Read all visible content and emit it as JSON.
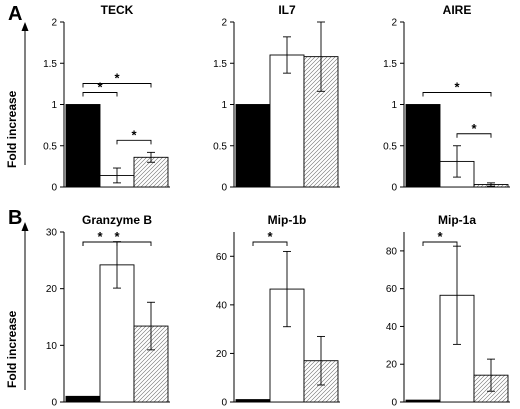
{
  "figure": {
    "panel_labels": [
      "A",
      "B"
    ],
    "ylabel": "Fold increase"
  },
  "chart_data": [
    {
      "type": "bar",
      "title": "TECK",
      "ylim": [
        0,
        2
      ],
      "yticks": [
        "0",
        "0.5",
        "1",
        "1.5",
        "2"
      ],
      "values": [
        1.0,
        0.14,
        0.36
      ],
      "errors": [
        0,
        0.09,
        0.06
      ],
      "significance": [
        {
          "from": 0,
          "to": 1,
          "label": "*"
        },
        {
          "from": 0,
          "to": 2,
          "label": "*"
        },
        {
          "from": 1,
          "to": 2,
          "label": "*"
        }
      ]
    },
    {
      "type": "bar",
      "title": "IL7",
      "ylim": [
        0,
        2
      ],
      "yticks": [
        "0",
        "0.5",
        "1",
        "1.5",
        "2"
      ],
      "values": [
        1.0,
        1.6,
        1.58
      ],
      "errors": [
        0,
        0.22,
        0.42
      ],
      "significance": []
    },
    {
      "type": "bar",
      "title": "AIRE",
      "ylim": [
        0,
        2
      ],
      "yticks": [
        "0",
        "0.5",
        "1",
        "1.5",
        "2"
      ],
      "values": [
        1.0,
        0.31,
        0.03
      ],
      "errors": [
        0,
        0.19,
        0.02
      ],
      "significance": [
        {
          "from": 0,
          "to": 2,
          "label": "*"
        },
        {
          "from": 1,
          "to": 2,
          "label": "*"
        }
      ]
    },
    {
      "type": "bar",
      "title": "Granzyme B",
      "ylim": [
        0,
        30
      ],
      "yticks": [
        "0",
        "10",
        "20",
        "30"
      ],
      "values": [
        1.0,
        24.2,
        13.4
      ],
      "errors": [
        0,
        4.1,
        4.2
      ],
      "significance": [
        {
          "from": 0,
          "to": 1,
          "label": "*"
        },
        {
          "from": 0,
          "to": 2,
          "label": "*"
        }
      ]
    },
    {
      "type": "bar",
      "title": "Mip-1b",
      "ylim": [
        0,
        70
      ],
      "yticks": [
        "0",
        "20",
        "40",
        "60"
      ],
      "values": [
        1.0,
        46.5,
        17.0
      ],
      "errors": [
        0,
        15.5,
        10.0
      ],
      "significance": [
        {
          "from": 0,
          "to": 1,
          "label": "*"
        }
      ]
    },
    {
      "type": "bar",
      "title": "Mip-1a",
      "ylim": [
        0,
        90
      ],
      "yticks": [
        "0",
        "20",
        "40",
        "60",
        "80"
      ],
      "values": [
        1.0,
        56.5,
        14.2
      ],
      "errors": [
        0,
        26.0,
        8.5
      ],
      "significance": [
        {
          "from": 0,
          "to": 1,
          "label": "*"
        }
      ]
    }
  ]
}
